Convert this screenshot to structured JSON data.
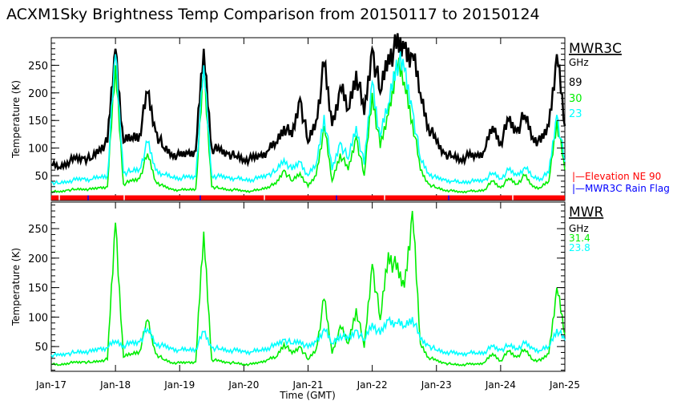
{
  "chart_data": [
    {
      "type": "line",
      "title": "ACXM1Sky Brightness Temp Comparison from 20150117 to 20150124",
      "instrument": "MWR3C",
      "unit_label": "GHz",
      "ylabel": "Temperature (K)",
      "ylim": [
        5,
        300
      ],
      "yticks": [
        50,
        100,
        150,
        200,
        250
      ],
      "x_start_day": 17,
      "series": [
        {
          "name": "89",
          "color": "#000000",
          "values": [
            70,
            65,
            75,
            80,
            82,
            80,
            100,
            110,
            280,
            110,
            120,
            125,
            200,
            130,
            100,
            90,
            85,
            90,
            95,
            280,
            100,
            95,
            90,
            85,
            80,
            80,
            85,
            95,
            110,
            140,
            120,
            190,
            110,
            150,
            250,
            140,
            210,
            170,
            240,
            160,
            280,
            200,
            270,
            280,
            280,
            270,
            200,
            140,
            110,
            90,
            85,
            80,
            85,
            85,
            95,
            140,
            110,
            150,
            130,
            160,
            120,
            110,
            140,
            270,
            140
          ]
        },
        {
          "name": "30",
          "color": "#00ee00",
          "values": [
            22,
            20,
            24,
            25,
            26,
            25,
            28,
            30,
            250,
            35,
            40,
            45,
            90,
            40,
            30,
            25,
            24,
            25,
            26,
            240,
            30,
            27,
            25,
            24,
            22,
            22,
            25,
            30,
            35,
            60,
            40,
            55,
            30,
            50,
            140,
            40,
            90,
            60,
            120,
            50,
            200,
            100,
            160,
            250,
            220,
            150,
            60,
            35,
            28,
            24,
            22,
            20,
            22,
            22,
            25,
            40,
            28,
            45,
            35,
            50,
            30,
            28,
            40,
            150,
            60
          ]
        },
        {
          "name": "23",
          "color": "#00ffff",
          "values": [
            38,
            36,
            40,
            42,
            44,
            43,
            48,
            50,
            270,
            55,
            58,
            62,
            110,
            60,
            52,
            48,
            46,
            47,
            48,
            250,
            50,
            48,
            46,
            45,
            43,
            43,
            46,
            52,
            58,
            80,
            60,
            75,
            50,
            70,
            160,
            60,
            110,
            80,
            140,
            70,
            220,
            120,
            180,
            260,
            240,
            170,
            80,
            55,
            45,
            42,
            40,
            38,
            40,
            40,
            42,
            55,
            45,
            60,
            50,
            65,
            48,
            45,
            55,
            160,
            75
          ]
        }
      ],
      "annotations": [
        {
          "text": "|—Elevation NE 90",
          "color": "#ff0000"
        },
        {
          "text": "|—MWR3C Rain Flag",
          "color": "#0000ff"
        }
      ]
    },
    {
      "type": "line",
      "instrument": "MWR",
      "unit_label": "GHz",
      "ylabel": "Temperature (K)",
      "ylim": [
        8,
        295
      ],
      "yticks": [
        50,
        100,
        150,
        200,
        250
      ],
      "xlabel": "Time (GMT)",
      "xticks": [
        "Jan-17",
        "Jan-18",
        "Jan-19",
        "Jan-20",
        "Jan-21",
        "Jan-22",
        "Jan-23",
        "Jan-24",
        "Jan-25"
      ],
      "x_start_day": 17,
      "series": [
        {
          "name": "31.4",
          "color": "#00ee00",
          "values": [
            20,
            19,
            22,
            23,
            24,
            23,
            26,
            28,
            260,
            32,
            38,
            42,
            95,
            38,
            28,
            23,
            22,
            23,
            24,
            245,
            28,
            25,
            23,
            22,
            20,
            20,
            23,
            28,
            32,
            55,
            38,
            50,
            28,
            45,
            130,
            38,
            85,
            55,
            115,
            48,
            190,
            95,
            210,
            180,
            150,
            280,
            55,
            32,
            26,
            22,
            20,
            19,
            20,
            20,
            23,
            38,
            26,
            42,
            32,
            45,
            28,
            26,
            38,
            150,
            70
          ]
        },
        {
          "name": "23.8",
          "color": "#00ffff",
          "values": [
            36,
            35,
            38,
            40,
            42,
            41,
            46,
            48,
            60,
            52,
            55,
            58,
            80,
            56,
            50,
            46,
            44,
            45,
            46,
            75,
            48,
            46,
            44,
            43,
            41,
            41,
            44,
            48,
            52,
            62,
            55,
            60,
            48,
            58,
            80,
            55,
            70,
            62,
            78,
            60,
            90,
            70,
            95,
            90,
            85,
            100,
            62,
            52,
            44,
            41,
            39,
            37,
            39,
            39,
            41,
            50,
            44,
            52,
            47,
            55,
            46,
            43,
            50,
            80,
            60
          ]
        }
      ]
    }
  ]
}
